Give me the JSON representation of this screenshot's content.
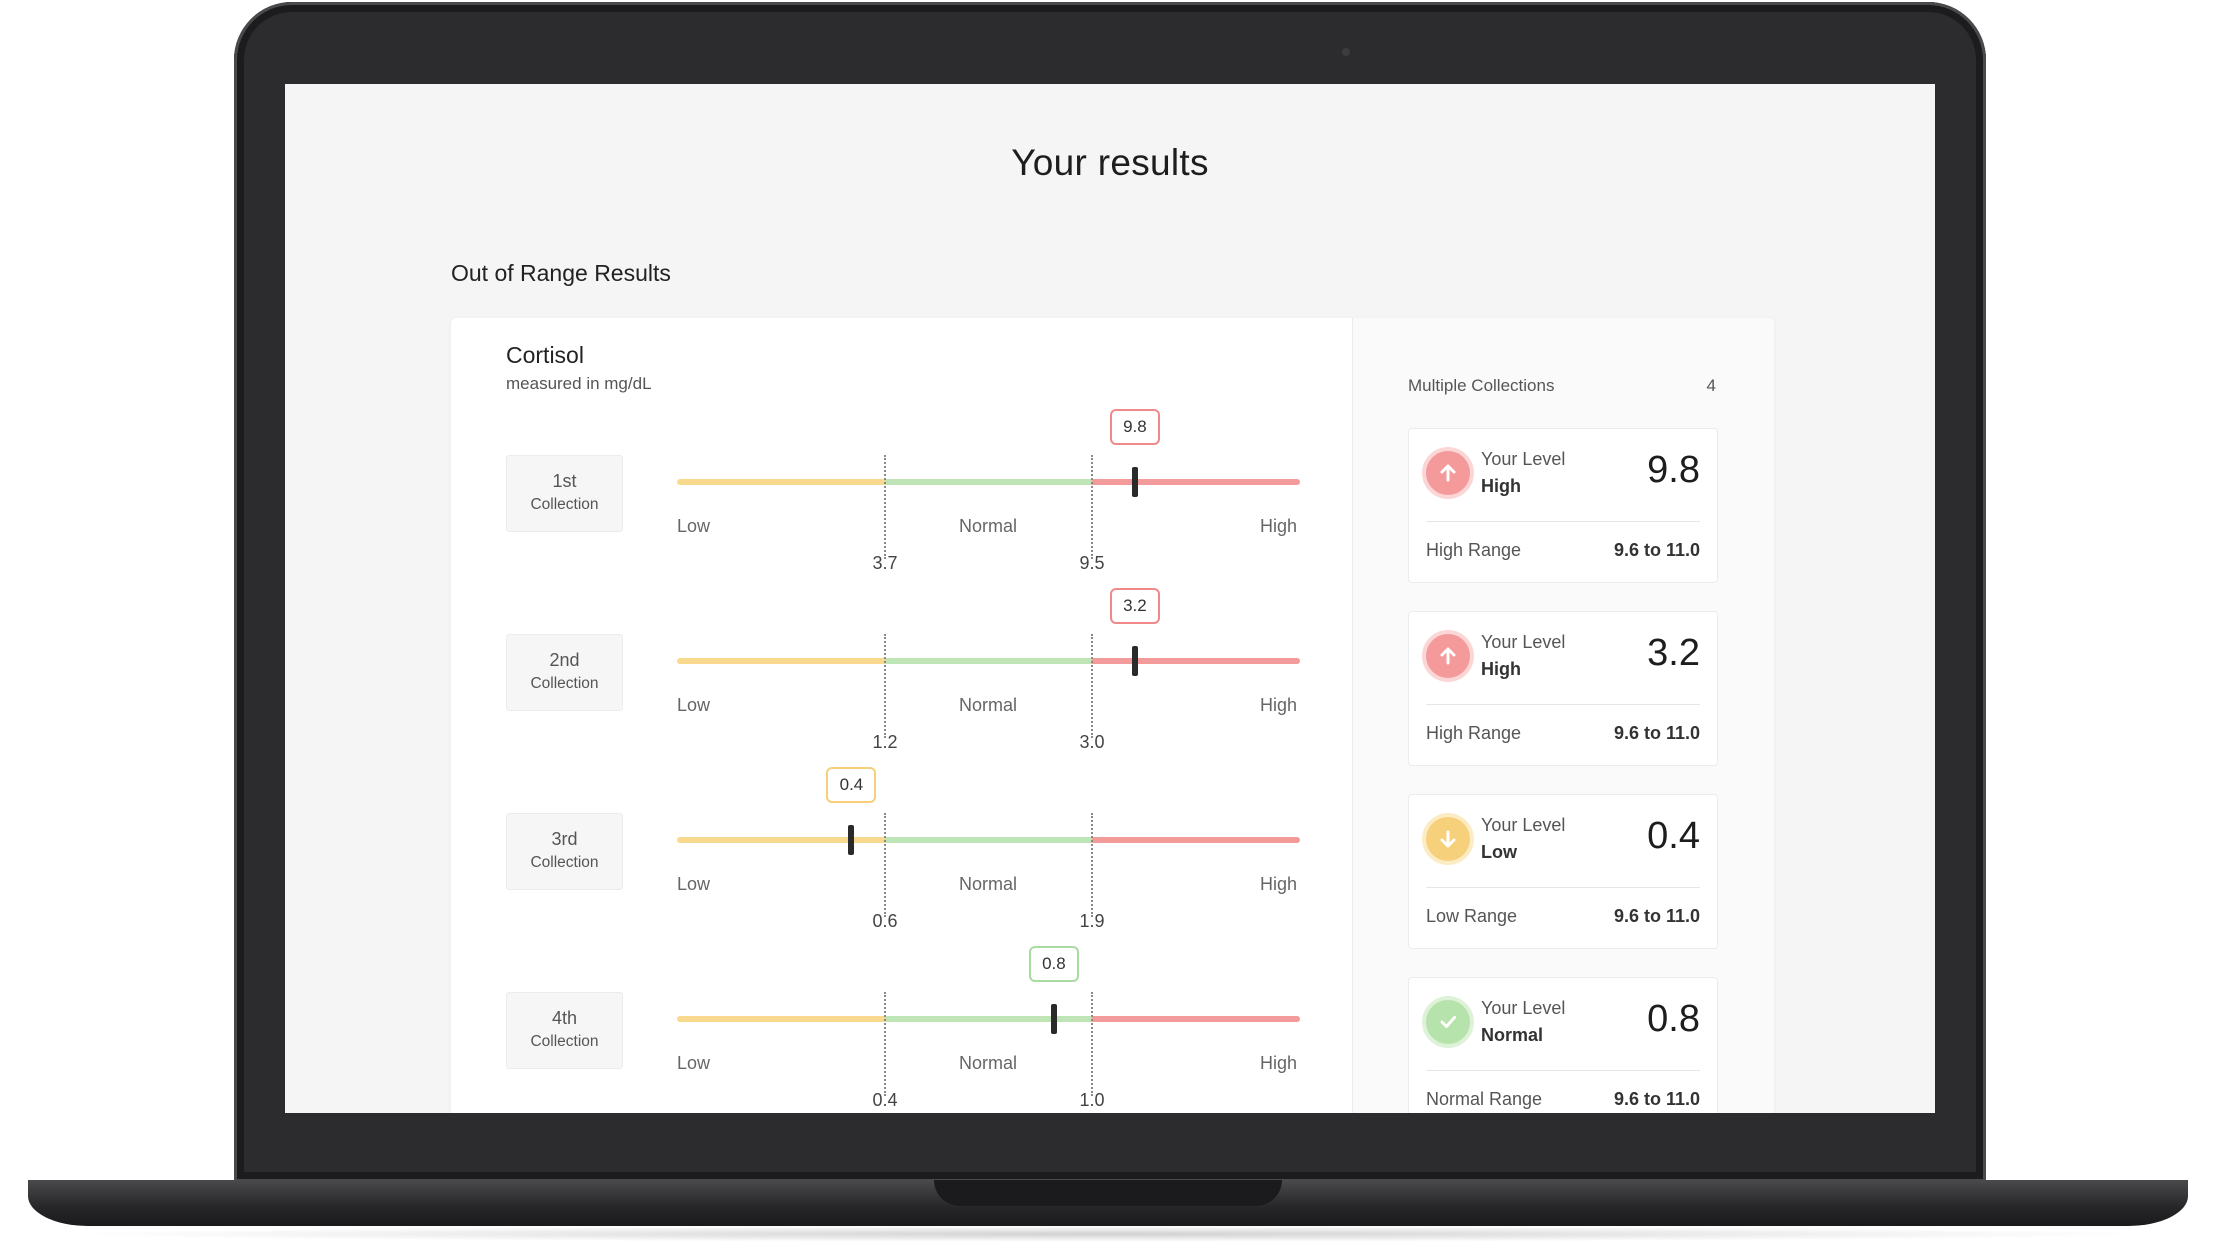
{
  "page": {
    "title": "Your results",
    "section_title": "Out of Range Results"
  },
  "test": {
    "name": "Cortisol",
    "unit": "measured in mg/dL"
  },
  "zones": {
    "low": "Low",
    "normal": "Normal",
    "high": "High"
  },
  "colors": {
    "low": "#f8d98d",
    "normal": "#bfe4b5",
    "high": "#f39a9a",
    "low_accent": "#f5cf7a",
    "normal_accent": "#a8dca0",
    "high_accent": "#f08a8a"
  },
  "collections": [
    {
      "ordinal": "1st",
      "label": "Collection",
      "value": "9.8",
      "low_cutoff": "3.7",
      "high_cutoff": "9.5",
      "status": "high",
      "marker_fraction": 0.735
    },
    {
      "ordinal": "2nd",
      "label": "Collection",
      "value": "3.2",
      "low_cutoff": "1.2",
      "high_cutoff": "3.0",
      "status": "high",
      "marker_fraction": 0.735
    },
    {
      "ordinal": "3rd",
      "label": "Collection",
      "value": "0.4",
      "low_cutoff": "0.6",
      "high_cutoff": "1.9",
      "status": "low",
      "marker_fraction": 0.28
    },
    {
      "ordinal": "4th",
      "label": "Collection",
      "value": "0.8",
      "low_cutoff": "0.4",
      "high_cutoff": "1.0",
      "status": "normal",
      "marker_fraction": 0.605
    }
  ],
  "summary": {
    "label": "Multiple Collections",
    "count": "4",
    "cards": [
      {
        "your_level": "Your Level",
        "status": "High",
        "value": "9.8",
        "range_label": "High Range",
        "range_value": "9.6 to 11.0",
        "icon": "arrow-up-icon",
        "kind": "high"
      },
      {
        "your_level": "Your Level",
        "status": "High",
        "value": "3.2",
        "range_label": "High Range",
        "range_value": "9.6 to 11.0",
        "icon": "arrow-up-icon",
        "kind": "high"
      },
      {
        "your_level": "Your Level",
        "status": "Low",
        "value": "0.4",
        "range_label": "Low Range",
        "range_value": "9.6 to 11.0",
        "icon": "arrow-down-icon",
        "kind": "low"
      },
      {
        "your_level": "Your Level",
        "status": "Normal",
        "value": "0.8",
        "range_label": "Normal Range",
        "range_value": "9.6 to 11.0",
        "icon": "check-icon",
        "kind": "normal"
      }
    ]
  }
}
